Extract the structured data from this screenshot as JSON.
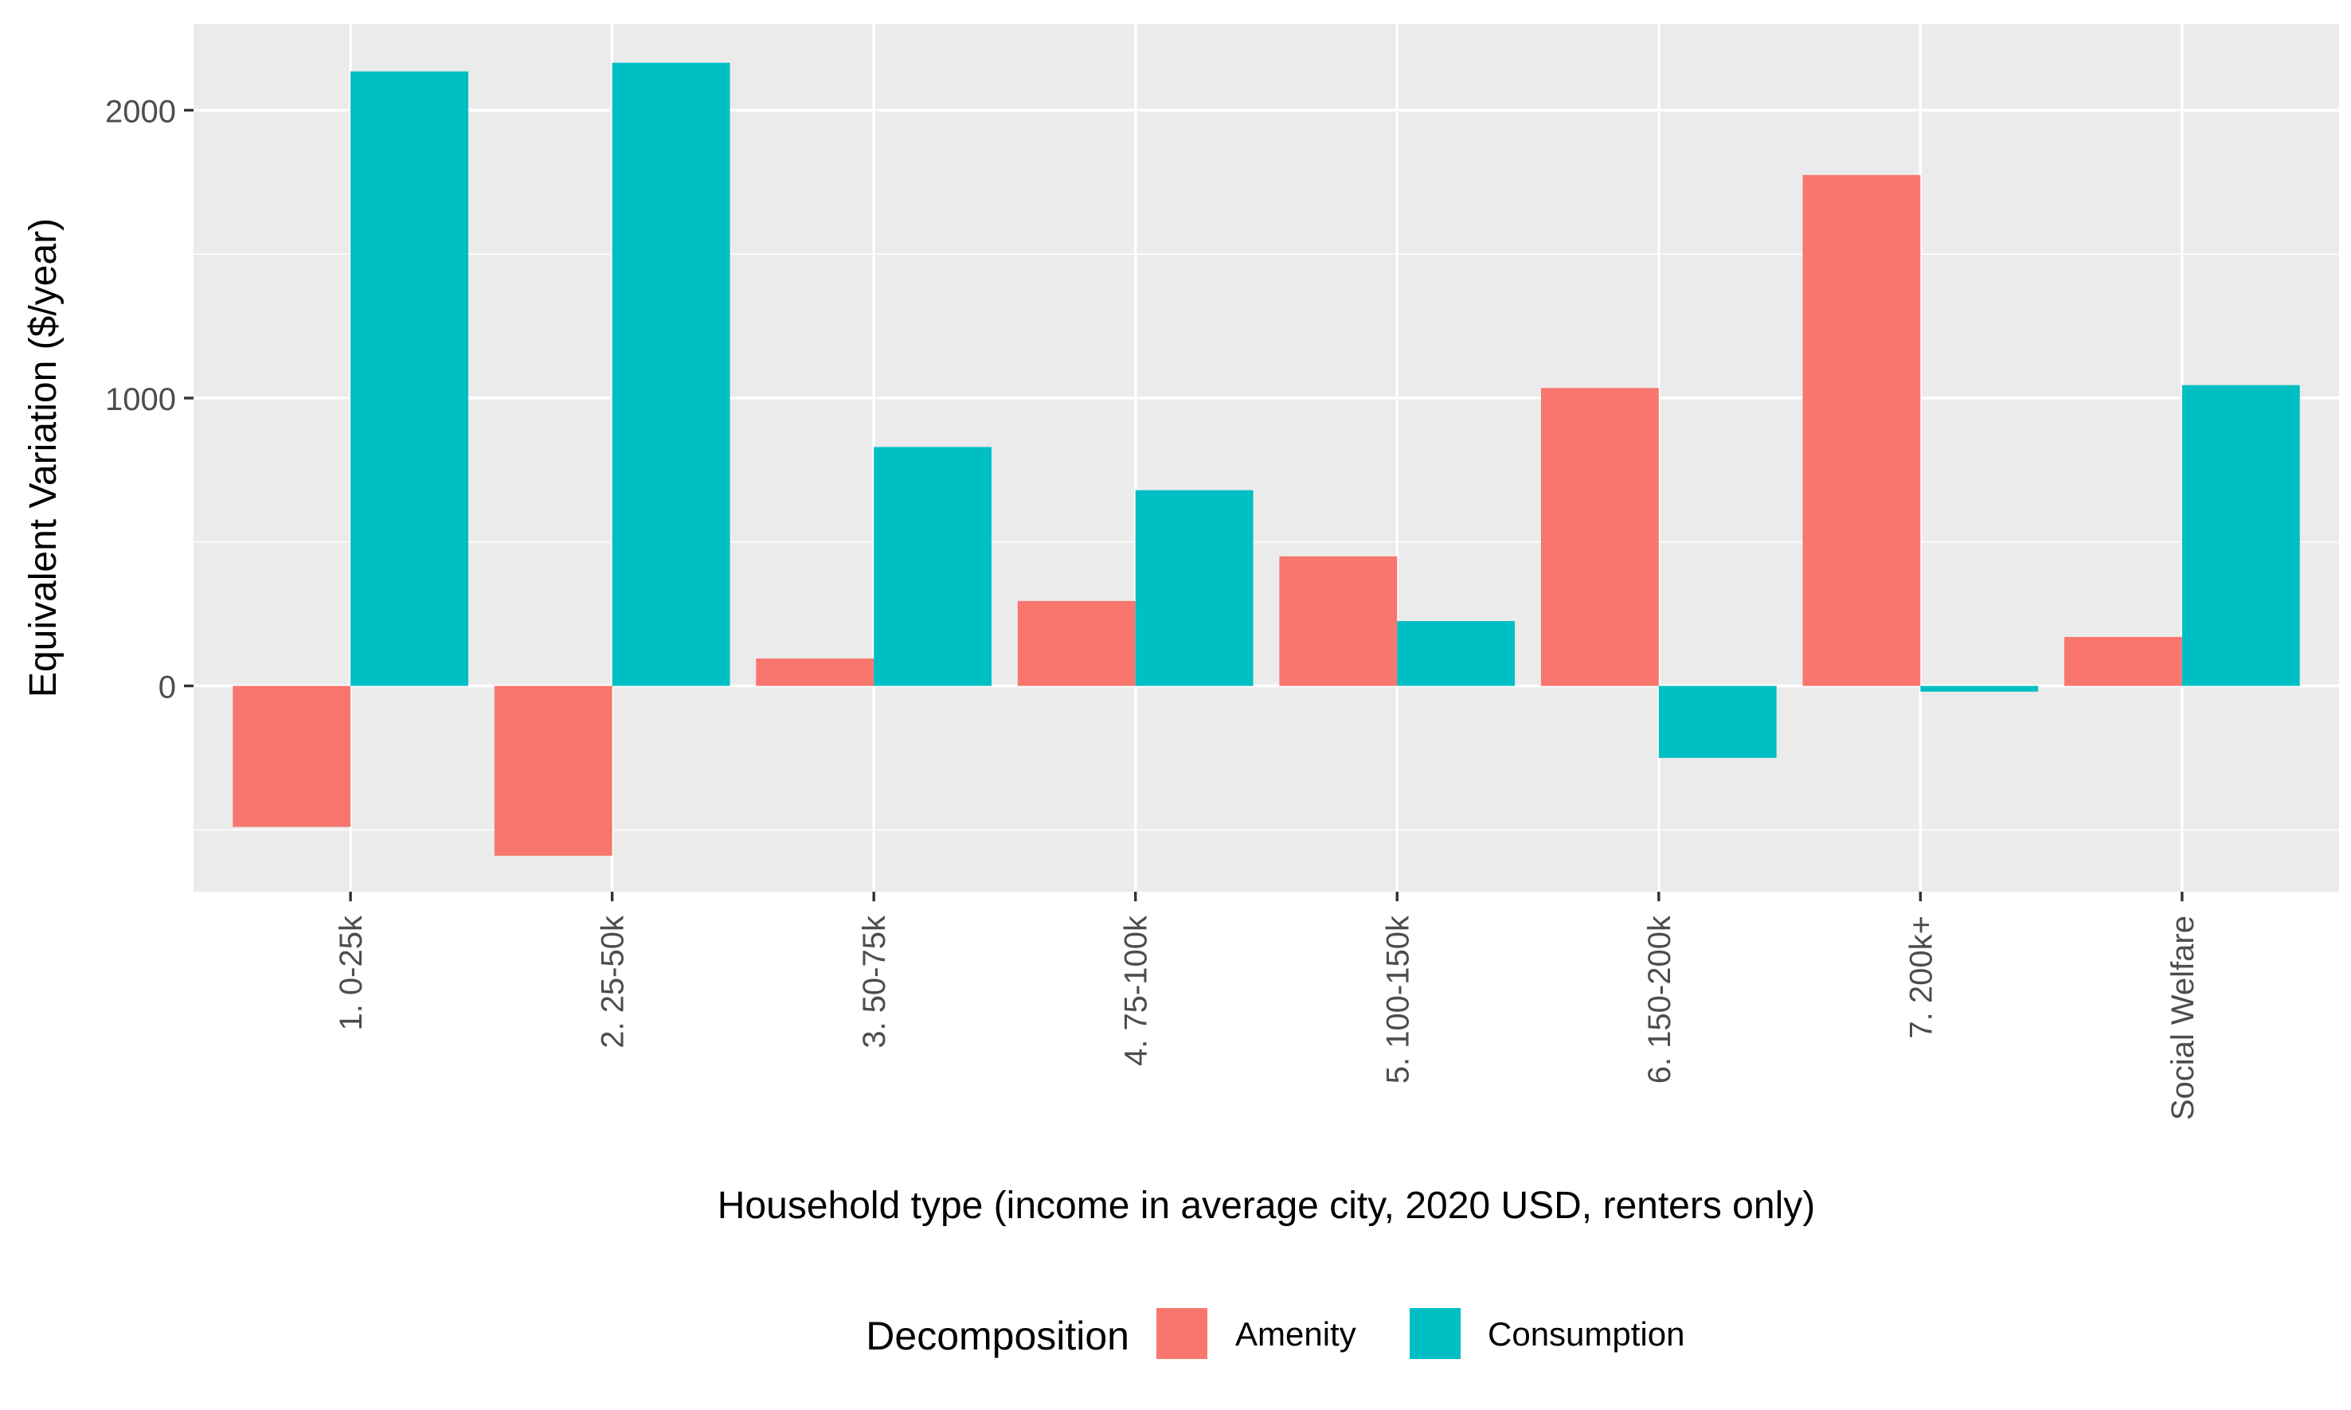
{
  "chart_data": {
    "type": "bar",
    "title": "",
    "xlabel": "Household type (income in average city, 2020 USD, renters only)",
    "ylabel": "Equivalent Variation ($/year)",
    "categories": [
      "1. 0-25k",
      "2. 25-50k",
      "3. 50-75k",
      "4. 75-100k",
      "5. 100-150k",
      "6. 150-200k",
      "7. 200k+",
      "Social Welfare"
    ],
    "series": [
      {
        "name": "Amenity",
        "color": "#F8766D",
        "values": [
          -490,
          -590,
          95,
          295,
          450,
          1035,
          1775,
          170
        ]
      },
      {
        "name": "Consumption",
        "color": "#00BFC4",
        "values": [
          2135,
          2165,
          830,
          680,
          225,
          -250,
          -20,
          1045
        ]
      }
    ],
    "yticks": [
      0,
      1000,
      2000
    ],
    "ylim": [
      -715,
      2300
    ],
    "grid": true,
    "legend": {
      "title": "Decomposition",
      "position": "bottom"
    },
    "panel_background": "#EBEBEB",
    "grid_color": "#FFFFFF"
  }
}
